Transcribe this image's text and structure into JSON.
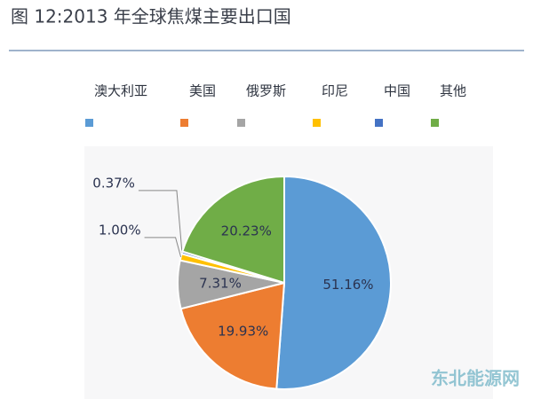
{
  "chart_data": {
    "type": "pie",
    "title": "图 12:2013 年全球焦煤主要出口国",
    "categories": [
      "澳大利亚",
      "美国",
      "俄罗斯",
      "印尼",
      "中国",
      "其他"
    ],
    "values": [
      51.16,
      19.93,
      7.31,
      1.0,
      0.37,
      20.23
    ],
    "value_labels": [
      "51.16%",
      "19.93%",
      "7.31%",
      "1.00%",
      "0.37%",
      "20.23%"
    ],
    "colors": [
      "#5b9bd5",
      "#ed7d31",
      "#a5a5a5",
      "#ffc000",
      "#4472c4",
      "#70ad47"
    ],
    "legend": "top"
  },
  "watermark": "东北能源网"
}
